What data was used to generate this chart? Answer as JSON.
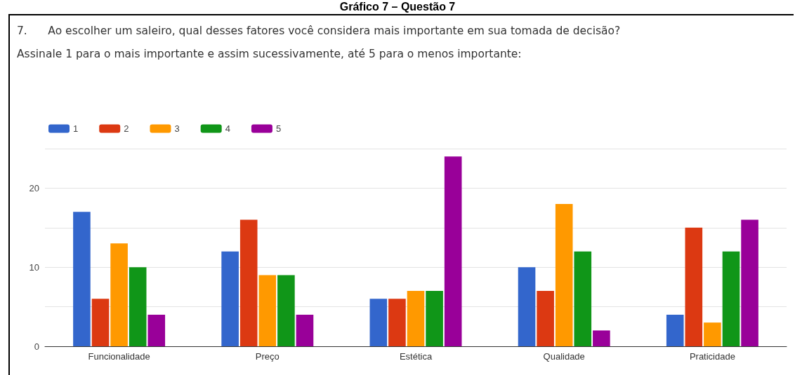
{
  "chart_data": {
    "type": "bar",
    "title": "Gráfico 7 – Questão 7",
    "subtitle": "7.      Ao escolher um saleiro, qual desses fatores você considera mais importante em sua tomada de decisão?\nAssinale 1 para o mais importante e assim sucessivamente, até 5 para o menos importante:",
    "categories": [
      "Funcionalidade",
      "Preço",
      "Estética",
      "Qualidade",
      "Praticidade"
    ],
    "series": [
      {
        "name": "1",
        "color": "#3366cc",
        "values": [
          17,
          12,
          6,
          10,
          4
        ]
      },
      {
        "name": "2",
        "color": "#dc3912",
        "values": [
          6,
          16,
          6,
          7,
          15
        ]
      },
      {
        "name": "3",
        "color": "#ff9900",
        "values": [
          13,
          9,
          7,
          18,
          3
        ]
      },
      {
        "name": "4",
        "color": "#109618",
        "values": [
          10,
          9,
          7,
          12,
          12
        ]
      },
      {
        "name": "5",
        "color": "#990099",
        "values": [
          4,
          4,
          24,
          2,
          16
        ]
      }
    ],
    "ylim": [
      0,
      25
    ],
    "yticks": [
      0,
      {
        "value": 5,
        "label": null
      },
      10,
      {
        "value": 15,
        "label": null
      },
      20,
      {
        "value": 25,
        "label": null
      }
    ],
    "grid": "y",
    "legend": "top left"
  }
}
